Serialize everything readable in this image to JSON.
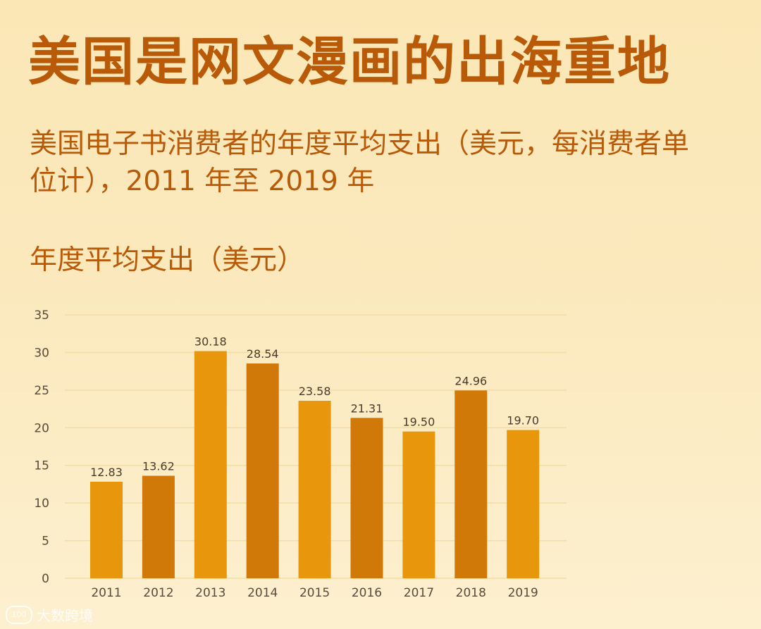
{
  "header": {
    "title": "美国是网文漫画的出海重地",
    "subtitle": "美国电子书消费者的年度平均支出（美元，每消费者单位计），2011 年至 2019 年",
    "ylabel": "年度平均支出（美元）"
  },
  "watermark": {
    "text": "大数跨境",
    "icon": "100-logo-icon"
  },
  "colors": {
    "bar_light": "#e8960b",
    "bar_dark": "#d07908",
    "title": "#b85a08",
    "grid": "#f3dca6"
  },
  "chart_data": {
    "type": "bar",
    "categories": [
      "2011",
      "2012",
      "2013",
      "2014",
      "2015",
      "2016",
      "2017",
      "2018",
      "2019"
    ],
    "values": [
      12.83,
      13.62,
      30.18,
      28.54,
      23.58,
      21.31,
      19.5,
      24.96,
      19.7
    ],
    "value_labels": [
      "12.83",
      "13.62",
      "30.18",
      "28.54",
      "23.58",
      "21.31",
      "19.50",
      "24.96",
      "19.70"
    ],
    "yticks": [
      "0",
      "5",
      "10",
      "15",
      "20",
      "25",
      "30",
      "35"
    ],
    "ylim": [
      0,
      35
    ],
    "grid": true,
    "title": "年度平均支出（美元）"
  }
}
